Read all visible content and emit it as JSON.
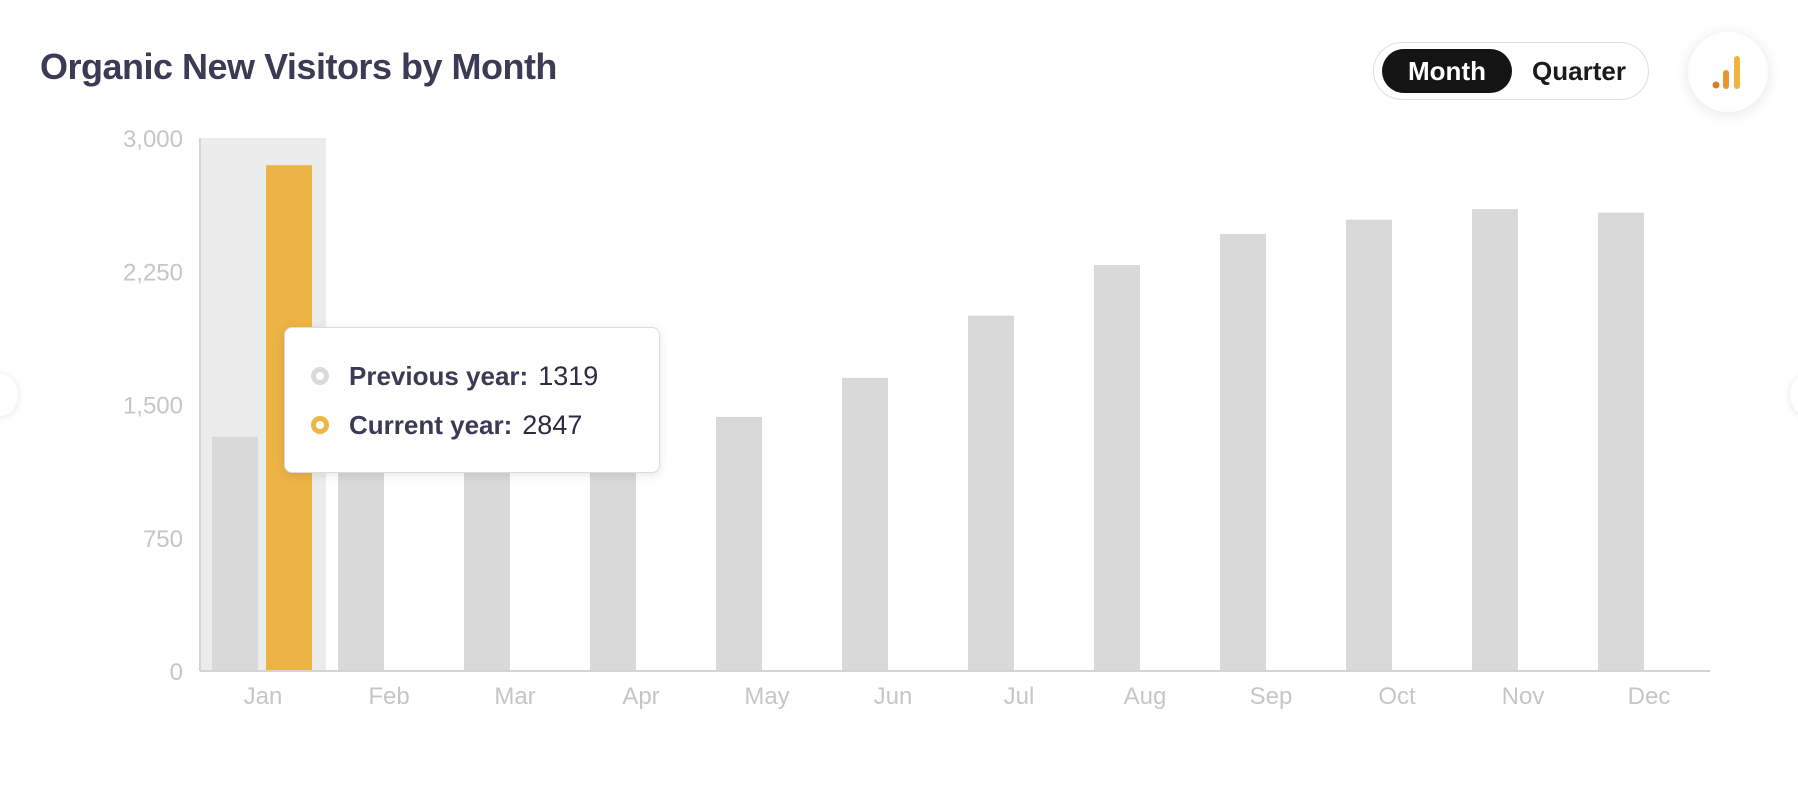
{
  "header": {
    "title": "Organic New Visitors by Month",
    "toggle": {
      "month_label": "Month",
      "quarter_label": "Quarter",
      "selected": "Month"
    },
    "chart_icon": "bar-chart-icon"
  },
  "colors": {
    "previous_year": "#d9d9d9",
    "current_year": "#ecb445",
    "highlight_band": "#ececec",
    "title": "#3a3b55",
    "toggle_active_bg": "#141414"
  },
  "tooltip": {
    "category": "Jan",
    "previous_label": "Previous year:",
    "previous_value": "1319",
    "current_label": "Current year:",
    "current_value": "2847"
  },
  "chart_data": {
    "type": "bar",
    "categories": [
      "Jan",
      "Feb",
      "Mar",
      "Apr",
      "May",
      "Jun",
      "Jul",
      "Aug",
      "Sep",
      "Oct",
      "Nov",
      "Dec"
    ],
    "series": [
      {
        "name": "Previous year",
        "values": [
          1319,
          1150,
          1150,
          1150,
          1430,
          1650,
          2000,
          2285,
          2460,
          2540,
          2600,
          2580
        ]
      },
      {
        "name": "Current year",
        "values": [
          2847,
          null,
          null,
          null,
          null,
          null,
          null,
          null,
          null,
          null,
          null,
          null
        ]
      }
    ],
    "yticks": [
      "0",
      "750",
      "1,500",
      "2,250",
      "3,000"
    ],
    "ylim": [
      0,
      3000
    ],
    "highlighted_category": "Jan",
    "grid": false,
    "title": "",
    "xlabel": "",
    "ylabel": ""
  }
}
